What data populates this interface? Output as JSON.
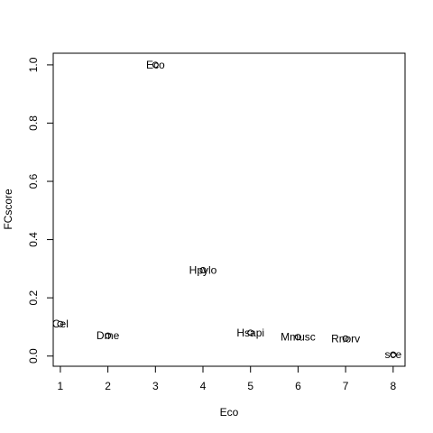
{
  "chart_data": {
    "type": "scatter",
    "title": "",
    "xlabel": "Eco",
    "ylabel": "FCscore",
    "xlim": [
      0.85,
      8.25
    ],
    "ylim": [
      -0.035,
      1.04
    ],
    "xticks": [
      1,
      2,
      3,
      4,
      5,
      6,
      7,
      8
    ],
    "yticks": [
      0.0,
      0.2,
      0.4,
      0.6,
      0.8,
      1.0
    ],
    "ytick_labels": [
      "0.0",
      "0.2",
      "0.4",
      "0.6",
      "0.8",
      "1.0"
    ],
    "grid": false,
    "legend": "none",
    "marker": "open-circle",
    "points": [
      {
        "x": 1,
        "y": 0.11,
        "label": "Cel"
      },
      {
        "x": 2,
        "y": 0.07,
        "label": "Dme"
      },
      {
        "x": 3,
        "y": 1.0,
        "label": "Eco"
      },
      {
        "x": 4,
        "y": 0.295,
        "label": "Hpylo"
      },
      {
        "x": 5,
        "y": 0.08,
        "label": "Hsapi"
      },
      {
        "x": 6,
        "y": 0.065,
        "label": "Mmusc"
      },
      {
        "x": 7,
        "y": 0.06,
        "label": "Rnorv"
      },
      {
        "x": 8,
        "y": 0.005,
        "label": "sce"
      }
    ]
  }
}
